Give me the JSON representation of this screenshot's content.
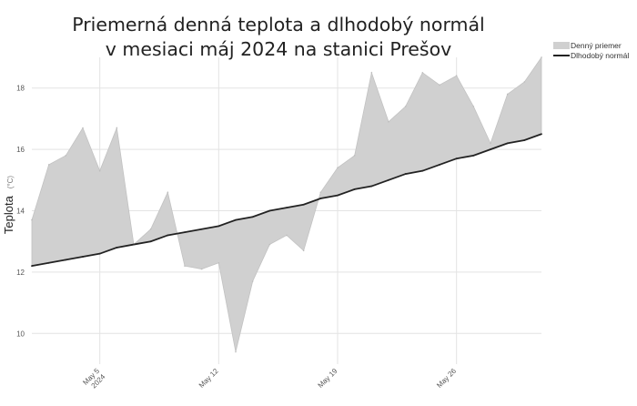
{
  "chart_data": {
    "type": "area",
    "title_lines": [
      "Priemerná denná teplota a dlhodobý normál",
      "v mesiaci máj 2024 na stanici Prešov"
    ],
    "ylabel": "Teplota",
    "ylabel_unit": "(°C)",
    "xlabel": "",
    "ylim": [
      9.0,
      19.0
    ],
    "xlim": [
      1,
      31
    ],
    "y_ticks": [
      10,
      12,
      14,
      16,
      18
    ],
    "x_ticks": [
      {
        "day": 5,
        "lines": [
          "May 5",
          "2024"
        ]
      },
      {
        "day": 12,
        "lines": [
          "May 12"
        ]
      },
      {
        "day": 19,
        "lines": [
          "May 19"
        ]
      },
      {
        "day": 26,
        "lines": [
          "May 26"
        ]
      }
    ],
    "grid": true,
    "legend_position": "top-right",
    "x": [
      1,
      2,
      3,
      4,
      5,
      6,
      7,
      8,
      9,
      10,
      11,
      12,
      13,
      14,
      15,
      16,
      17,
      18,
      19,
      20,
      21,
      22,
      23,
      24,
      25,
      26,
      27,
      28,
      29,
      30,
      31
    ],
    "series": [
      {
        "name": "Denný priemer",
        "kind": "area",
        "color": "#d0d0d0",
        "values": [
          13.7,
          15.5,
          15.8,
          16.7,
          15.3,
          16.7,
          12.9,
          13.4,
          14.6,
          12.2,
          12.1,
          12.3,
          9.4,
          11.7,
          12.9,
          13.2,
          12.7,
          14.6,
          15.4,
          15.8,
          18.5,
          16.9,
          17.4,
          18.5,
          18.1,
          18.4,
          17.4,
          16.2,
          17.8,
          18.2,
          19.0
        ]
      },
      {
        "name": "Dlhodobý normál",
        "kind": "line",
        "color": "#222222",
        "values": [
          12.2,
          12.3,
          12.4,
          12.5,
          12.6,
          12.8,
          12.9,
          13.0,
          13.2,
          13.3,
          13.4,
          13.5,
          13.7,
          13.8,
          14.0,
          14.1,
          14.2,
          14.4,
          14.5,
          14.7,
          14.8,
          15.0,
          15.2,
          15.3,
          15.5,
          15.7,
          15.8,
          16.0,
          16.2,
          16.3,
          16.5
        ]
      }
    ]
  }
}
